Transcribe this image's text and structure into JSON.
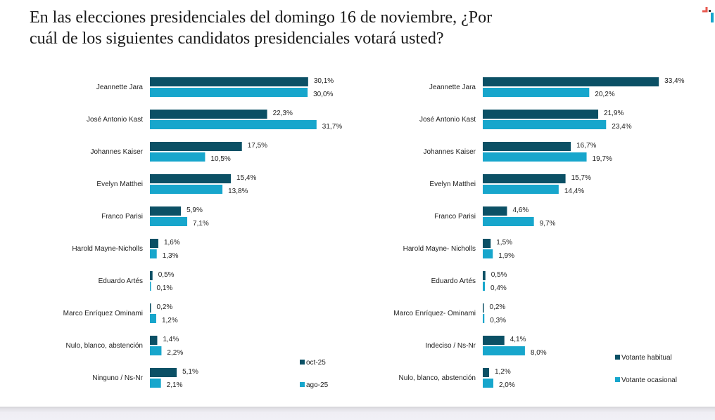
{
  "title_line1": "En las elecciones presidenciales del domingo 16 de noviembre, ¿Por",
  "title_line2": "cuál de los siguientes candidatos presidenciales votará usted?",
  "colors": {
    "dark": "#0b5065",
    "light": "#17a6cc",
    "label": "#222222"
  },
  "chart_data": [
    {
      "type": "bar",
      "orientation": "horizontal",
      "title": "",
      "categories": [
        "Jeannette Jara",
        "José Antonio Kast",
        "Johannes Kaiser",
        "Evelyn Matthei",
        "Franco Parisi",
        "Harold Mayne-Nicholls",
        "Eduardo Artés",
        "Marco Enríquez Ominami",
        "Nulo, blanco, abstención",
        "Ninguno / Ns-Nr"
      ],
      "series": [
        {
          "name": "oct-25",
          "color": "#0b5065",
          "values": [
            30.1,
            22.3,
            17.5,
            15.4,
            5.9,
            1.6,
            0.5,
            0.2,
            1.4,
            5.1
          ],
          "labels": [
            "30,1%",
            "22,3%",
            "17,5%",
            "15,4%",
            "5,9%",
            "1,6%",
            "0,5%",
            "0,2%",
            "1,4%",
            "5,1%"
          ]
        },
        {
          "name": "ago-25",
          "color": "#17a6cc",
          "values": [
            30.0,
            31.7,
            10.5,
            13.8,
            7.1,
            1.3,
            0.1,
            1.2,
            2.2,
            2.1
          ],
          "labels": [
            "30,0%",
            "31,7%",
            "10,5%",
            "13,8%",
            "7,1%",
            "1,3%",
            "0,1%",
            "1,2%",
            "2,2%",
            "2,1%"
          ]
        }
      ],
      "xlabel": "",
      "ylabel": "",
      "xlim": [
        0,
        35
      ],
      "grid": false,
      "legend": "bottom-right"
    },
    {
      "type": "bar",
      "orientation": "horizontal",
      "title": "",
      "categories": [
        "Jeannette Jara",
        "José Antonio Kast",
        "Johannes Kaiser",
        "Evelyn Matthei",
        "Franco Parisi",
        "Harold Mayne- Nicholls",
        "Eduardo Artés",
        "Marco Enríquez- Ominami",
        "Indeciso / Ns-Nr",
        "Nulo, blanco, abstención"
      ],
      "series": [
        {
          "name": "Votante habitual",
          "color": "#0b5065",
          "values": [
            33.4,
            21.9,
            16.7,
            15.7,
            4.6,
            1.5,
            0.5,
            0.2,
            4.1,
            1.2
          ],
          "labels": [
            "33,4%",
            "21,9%",
            "16,7%",
            "15,7%",
            "4,6%",
            "1,5%",
            "0,5%",
            "0,2%",
            "4,1%",
            "1,2%"
          ]
        },
        {
          "name": "Votante ocasional",
          "color": "#17a6cc",
          "values": [
            20.2,
            23.4,
            19.7,
            14.4,
            9.7,
            1.9,
            0.4,
            0.3,
            8.0,
            2.0
          ],
          "labels": [
            "20,2%",
            "23,4%",
            "19,7%",
            "14,4%",
            "9,7%",
            "1,9%",
            "0,4%",
            "0,3%",
            "8,0%",
            "2,0%"
          ]
        }
      ],
      "xlabel": "",
      "ylabel": "",
      "xlim": [
        0,
        35
      ],
      "grid": false,
      "legend": "bottom-right"
    }
  ]
}
